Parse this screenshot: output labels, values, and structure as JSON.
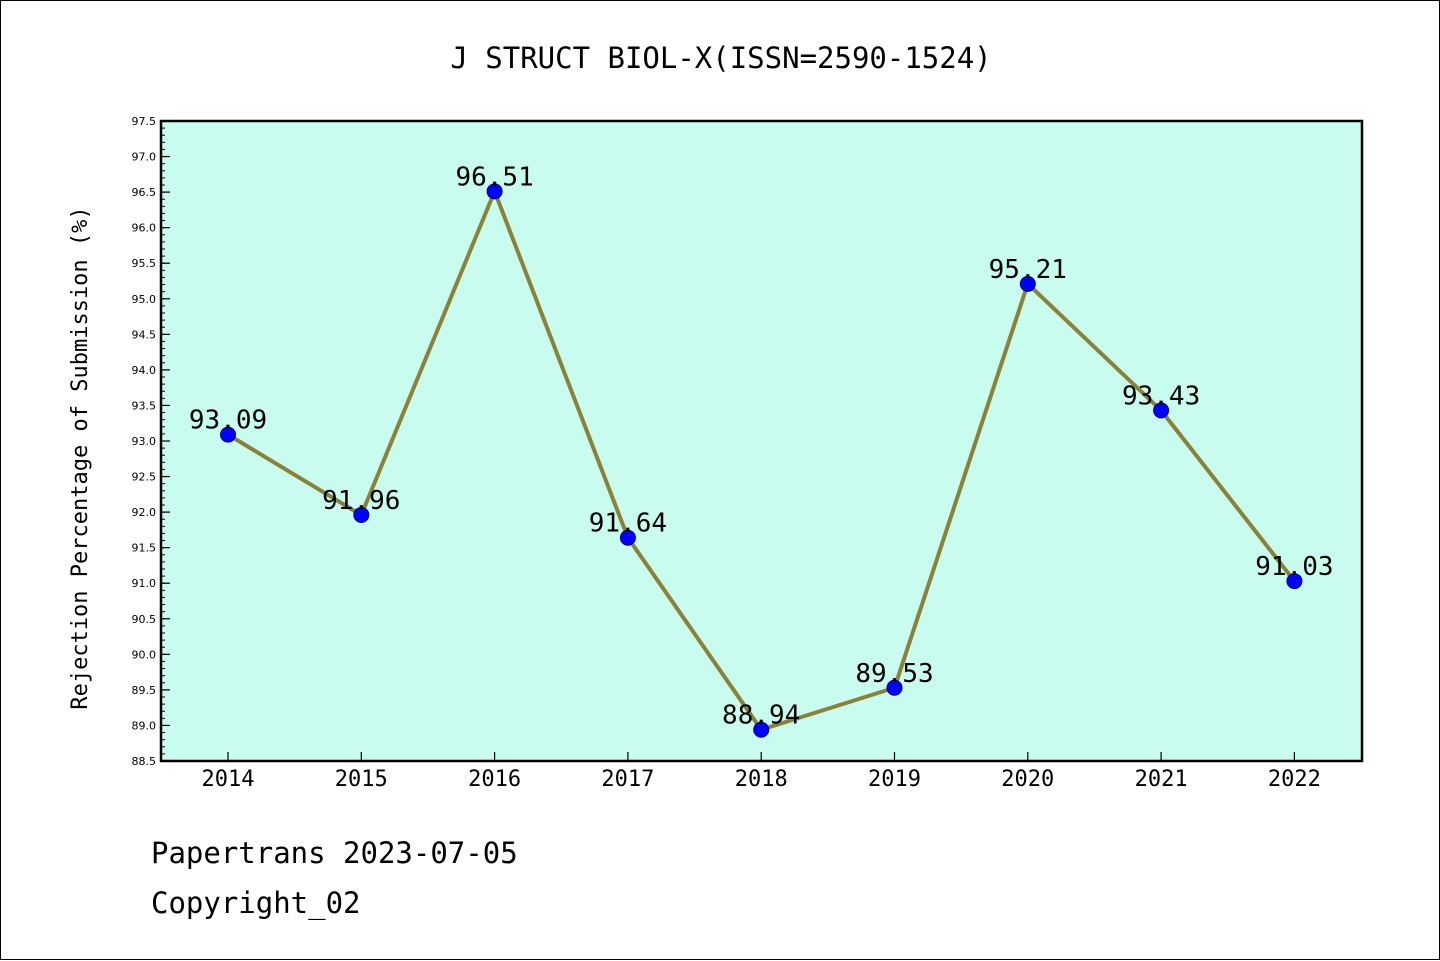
{
  "chart_data": {
    "type": "line",
    "title": "J STRUCT BIOL-X(ISSN=2590-1524)",
    "xlabel": "",
    "ylabel": "Rejection Percentage of Submission (%)",
    "categories": [
      "2014",
      "2015",
      "2016",
      "2017",
      "2018",
      "2019",
      "2020",
      "2021",
      "2022"
    ],
    "series": [
      {
        "values": [
          93.09,
          91.96,
          96.51,
          91.64,
          88.94,
          89.53,
          95.21,
          93.43,
          91.03
        ],
        "labels": [
          "93.09",
          "91.96",
          "96.51",
          "91.64",
          "88.94",
          "89.53",
          "95.21",
          "93.43",
          "91.03"
        ]
      }
    ],
    "ylim": [
      88.5,
      97.5
    ],
    "yticks": [
      "88.5",
      "89.0",
      "89.5",
      "90.0",
      "90.5",
      "91.0",
      "91.5",
      "92.0",
      "92.5",
      "93.0",
      "93.5",
      "94.0",
      "94.5",
      "95.0",
      "95.5",
      "96.0",
      "96.5",
      "97.0",
      "97.5"
    ],
    "grid": false,
    "legend": "none",
    "colors": {
      "plot_background": "#c8fcee",
      "line": "#8b8237",
      "marker": "#0000ff"
    }
  },
  "footer": {
    "source": "Papertrans 2023-07-05",
    "copyright": "Copyright_02"
  }
}
